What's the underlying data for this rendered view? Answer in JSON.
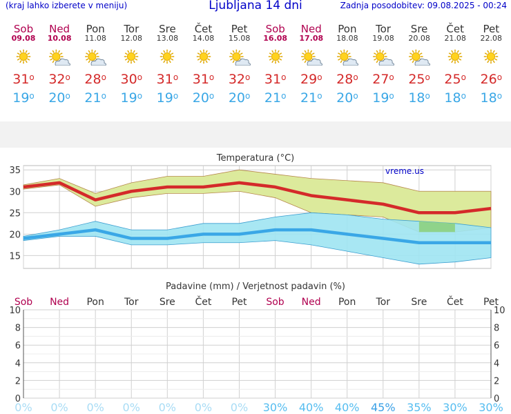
{
  "header": {
    "left_note": "(kraj lahko izberete v meniju)",
    "title": "Ljubljana 14 dni",
    "updated": "Zadnja posodobitev: 09.08.2025 - 00:24"
  },
  "days": [
    {
      "name": "Sob",
      "date": "09.08",
      "weekend": true,
      "icon": "sun-icon",
      "max": "31",
      "min": "19"
    },
    {
      "name": "Ned",
      "date": "10.08",
      "weekend": true,
      "icon": "sun-cloud-icon",
      "max": "32",
      "min": "20"
    },
    {
      "name": "Pon",
      "date": "11.08",
      "weekend": false,
      "icon": "sun-cloud-icon",
      "max": "28",
      "min": "21"
    },
    {
      "name": "Tor",
      "date": "12.08",
      "weekend": false,
      "icon": "sun-icon",
      "max": "30",
      "min": "19"
    },
    {
      "name": "Sre",
      "date": "13.08",
      "weekend": false,
      "icon": "sun-icon",
      "max": "31",
      "min": "19"
    },
    {
      "name": "Čet",
      "date": "14.08",
      "weekend": false,
      "icon": "sun-icon",
      "max": "31",
      "min": "20"
    },
    {
      "name": "Pet",
      "date": "15.08",
      "weekend": false,
      "icon": "sun-cloud-icon",
      "max": "32",
      "min": "20"
    },
    {
      "name": "Sob",
      "date": "16.08",
      "weekend": true,
      "icon": "sun-icon",
      "max": "31",
      "min": "21"
    },
    {
      "name": "Ned",
      "date": "17.08",
      "weekend": true,
      "icon": "sun-cloud-icon",
      "max": "29",
      "min": "21"
    },
    {
      "name": "Pon",
      "date": "18.08",
      "weekend": false,
      "icon": "sun-cloud-icon",
      "max": "28",
      "min": "20"
    },
    {
      "name": "Tor",
      "date": "19.08",
      "weekend": false,
      "icon": "sun-cloud-icon",
      "max": "27",
      "min": "19"
    },
    {
      "name": "Sre",
      "date": "20.08",
      "weekend": false,
      "icon": "sun-cloud-icon",
      "max": "25",
      "min": "18"
    },
    {
      "name": "Čet",
      "date": "21.08",
      "weekend": false,
      "icon": "sun-icon",
      "max": "25",
      "min": "18"
    },
    {
      "name": "Pet",
      "date": "22.08",
      "weekend": false,
      "icon": "sun-icon",
      "max": "26",
      "min": "18"
    }
  ],
  "colors": {
    "max_temp": "#d42a2a",
    "min_temp": "#3aa7e6",
    "max_band": "#dcea9c",
    "min_band": "#9fe4f2",
    "overlap": "#8fd38a",
    "weekend": "#b0004f",
    "header_text": "#0000c8",
    "precip_pct": "#76ccf2",
    "precip_pct_strong": "#3aa0e6"
  },
  "chart_data": [
    {
      "type": "area",
      "title": "Temperatura (°C)",
      "watermark": "vreme.us",
      "categories": [
        "Sob",
        "Ned",
        "Pon",
        "Tor",
        "Sre",
        "Čet",
        "Pet",
        "Sob",
        "Ned",
        "Pon",
        "Tor",
        "Sre",
        "Čet",
        "Pet"
      ],
      "ylim": [
        12,
        36
      ],
      "yticks": [
        15,
        20,
        25,
        30,
        35
      ],
      "grid": true,
      "series": [
        {
          "values": [
            31,
            32,
            28,
            30,
            31,
            31,
            32,
            31,
            29,
            28,
            27,
            25,
            25,
            26
          ]
        },
        {
          "values": [
            31.5,
            33,
            29.5,
            32,
            33.5,
            33.5,
            35,
            34,
            33,
            32.5,
            32,
            30,
            30,
            30
          ]
        },
        {
          "values": [
            30.5,
            31.5,
            26.5,
            28.5,
            29.5,
            29.5,
            30,
            28.5,
            25,
            24.5,
            24,
            20.5,
            20.5,
            21.5
          ]
        },
        {
          "values": [
            19,
            20,
            21,
            19,
            19,
            20,
            20,
            21,
            21,
            20,
            19,
            18,
            18,
            18
          ]
        },
        {
          "values": [
            19.5,
            21,
            23,
            21,
            21,
            22.5,
            22.5,
            24,
            25,
            24.5,
            23.5,
            23,
            22.5,
            21.5
          ]
        },
        {
          "values": [
            18.5,
            19.5,
            19.5,
            17.5,
            17.5,
            18,
            18,
            18.5,
            17.5,
            16,
            14.5,
            13,
            13.5,
            14.5
          ]
        }
      ]
    },
    {
      "type": "bar",
      "title": "Padavine (mm) / Verjetnost padavin (%)",
      "categories": [
        "Sob",
        "Ned",
        "Pon",
        "Tor",
        "Sre",
        "Čet",
        "Pet",
        "Sob",
        "Ned",
        "Pon",
        "Tor",
        "Sre",
        "Čet",
        "Pet"
      ],
      "ylim": [
        0,
        10
      ],
      "yticks": [
        "0",
        "2",
        "4",
        "6",
        "8",
        "10"
      ],
      "precip_mm": [
        0,
        0,
        0,
        0,
        0,
        0,
        0,
        0,
        0,
        0,
        0,
        0,
        0,
        0
      ],
      "probability": [
        "0%",
        "0%",
        "0%",
        "0%",
        "0%",
        "0%",
        "0%",
        "30%",
        "40%",
        "40%",
        "45%",
        "35%",
        "30%",
        "30%"
      ],
      "grid": true
    }
  ]
}
